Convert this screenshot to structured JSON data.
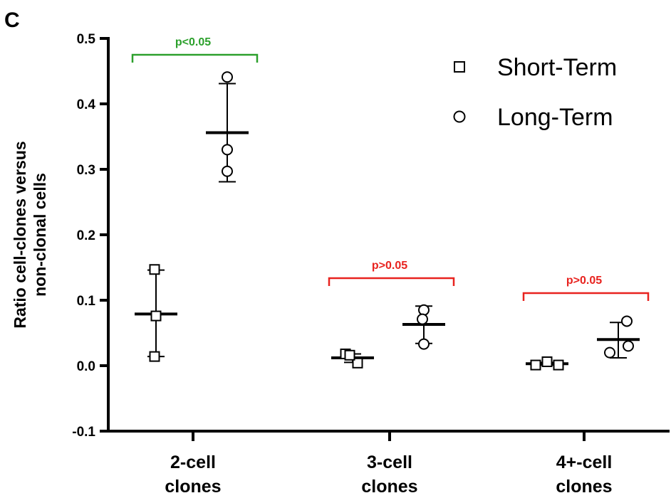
{
  "panel_label": "C",
  "chart_data": {
    "type": "scatter",
    "ylabel": [
      "Ratio cell-clones versus",
      "non-clonal cells"
    ],
    "ylim": [
      -0.1,
      0.5
    ],
    "yticks": [
      -0.1,
      0.0,
      0.1,
      0.2,
      0.3,
      0.4,
      0.5
    ],
    "ytick_labels": [
      "-0.1",
      "0.0",
      "0.1",
      "0.2",
      "0.3",
      "0.4",
      "0.5"
    ],
    "categories": [
      [
        "2-cell",
        "clones"
      ],
      [
        "3-cell",
        "clones"
      ],
      [
        "4+-cell",
        "clones"
      ]
    ],
    "legend_position": "top-right",
    "series": [
      {
        "name": "Short-Term",
        "marker": "square",
        "groups": [
          {
            "points": [
              0.147,
              0.076,
              0.014
            ],
            "mean": 0.079,
            "err_low": 0.014,
            "err_high": 0.146
          },
          {
            "points": [
              0.018,
              0.004,
              0.016
            ],
            "mean": 0.012,
            "err_low": 0.005,
            "err_high": 0.018
          },
          {
            "points": [
              0.001,
              0.006,
              0.001
            ],
            "mean": 0.003,
            "err_low": 0.001,
            "err_high": 0.005
          }
        ]
      },
      {
        "name": "Long-Term",
        "marker": "circle",
        "groups": [
          {
            "points": [
              0.441,
              0.33,
              0.297
            ],
            "mean": 0.356,
            "err_low": 0.281,
            "err_high": 0.431
          },
          {
            "points": [
              0.085,
              0.071,
              0.033
            ],
            "mean": 0.063,
            "err_low": 0.034,
            "err_high": 0.091
          },
          {
            "points": [
              0.068,
              0.02,
              0.03
            ],
            "mean": 0.04,
            "err_low": 0.012,
            "err_high": 0.066
          }
        ]
      }
    ],
    "annotations": [
      {
        "text": "p<0.05",
        "group": 0,
        "color": "#2ca02c"
      },
      {
        "text": "p>0.05",
        "group": 1,
        "color": "#e8231f"
      },
      {
        "text": "p>0.05",
        "group": 2,
        "color": "#e8231f"
      }
    ]
  }
}
